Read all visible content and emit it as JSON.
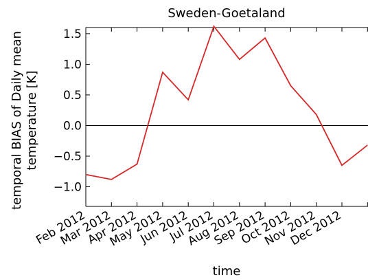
{
  "chart_data": {
    "type": "line",
    "title": "Sweden-Goetaland",
    "xlabel": "time",
    "ylabel": [
      "temporal BIAS of Daily mean",
      "temperature [K]"
    ],
    "categories": [
      "Feb 2012",
      "Mar 2012",
      "Apr 2012",
      "May 2012",
      "Jun 2012",
      "Jul 2012",
      "Aug 2012",
      "Sep 2012",
      "Oct 2012",
      "Nov 2012",
      "Dec 2012",
      null
    ],
    "series": [
      {
        "name": "BIAS",
        "color": "#d42a2a",
        "values": [
          -0.8,
          -0.88,
          -0.63,
          0.87,
          0.42,
          1.62,
          1.08,
          1.43,
          0.65,
          0.18,
          -0.65,
          -0.32
        ]
      }
    ],
    "ylim": [
      -1.32,
      1.6
    ],
    "yticks": [
      {
        "value": -1,
        "label": "−1.0"
      },
      {
        "value": -0.5,
        "label": "−0.5"
      },
      {
        "value": 0,
        "label": "0.0"
      },
      0.5,
      {
        "value": 1,
        "label": "1.0"
      },
      1.5
    ],
    "zero_line": true
  }
}
